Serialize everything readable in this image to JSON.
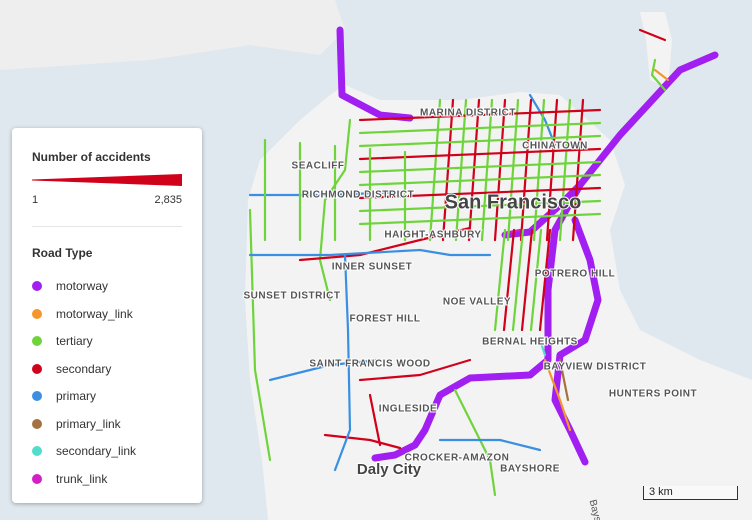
{
  "legend": {
    "title": "Number of accidents",
    "min": 1,
    "max": {
      "value": 2835,
      "label": "2,835"
    },
    "road_type_title": "Road Type",
    "road_types": [
      {
        "name": "motorway",
        "color": "#a11ff0"
      },
      {
        "name": "motorway_link",
        "color": "#f4962c"
      },
      {
        "name": "tertiary",
        "color": "#6fd43c"
      },
      {
        "name": "secondary",
        "color": "#d0021b"
      },
      {
        "name": "primary",
        "color": "#3b8fe2"
      },
      {
        "name": "primary_link",
        "color": "#a57140"
      },
      {
        "name": "secondary_link",
        "color": "#52dccc"
      },
      {
        "name": "trunk_link",
        "color": "#d21fc6"
      }
    ]
  },
  "places": [
    "MARINA DISTRICT",
    "CHINATOWN",
    "SEACLIFF",
    "RICHMOND DISTRICT",
    "San Francisco",
    "HAIGHT-ASHBURY",
    "INNER SUNSET",
    "SUNSET DISTRICT",
    "NOE VALLEY",
    "POTRERO HILL",
    "FOREST HILL",
    "BERNAL HEIGHTS",
    "SAINT FRANCIS WOOD",
    "BAYVIEW DISTRICT",
    "HUNTERS POINT",
    "INGLESIDE",
    "Daly City",
    "CROCKER-AMAZON",
    "BAYSHORE",
    "Bayshore"
  ],
  "scale": "3 km"
}
